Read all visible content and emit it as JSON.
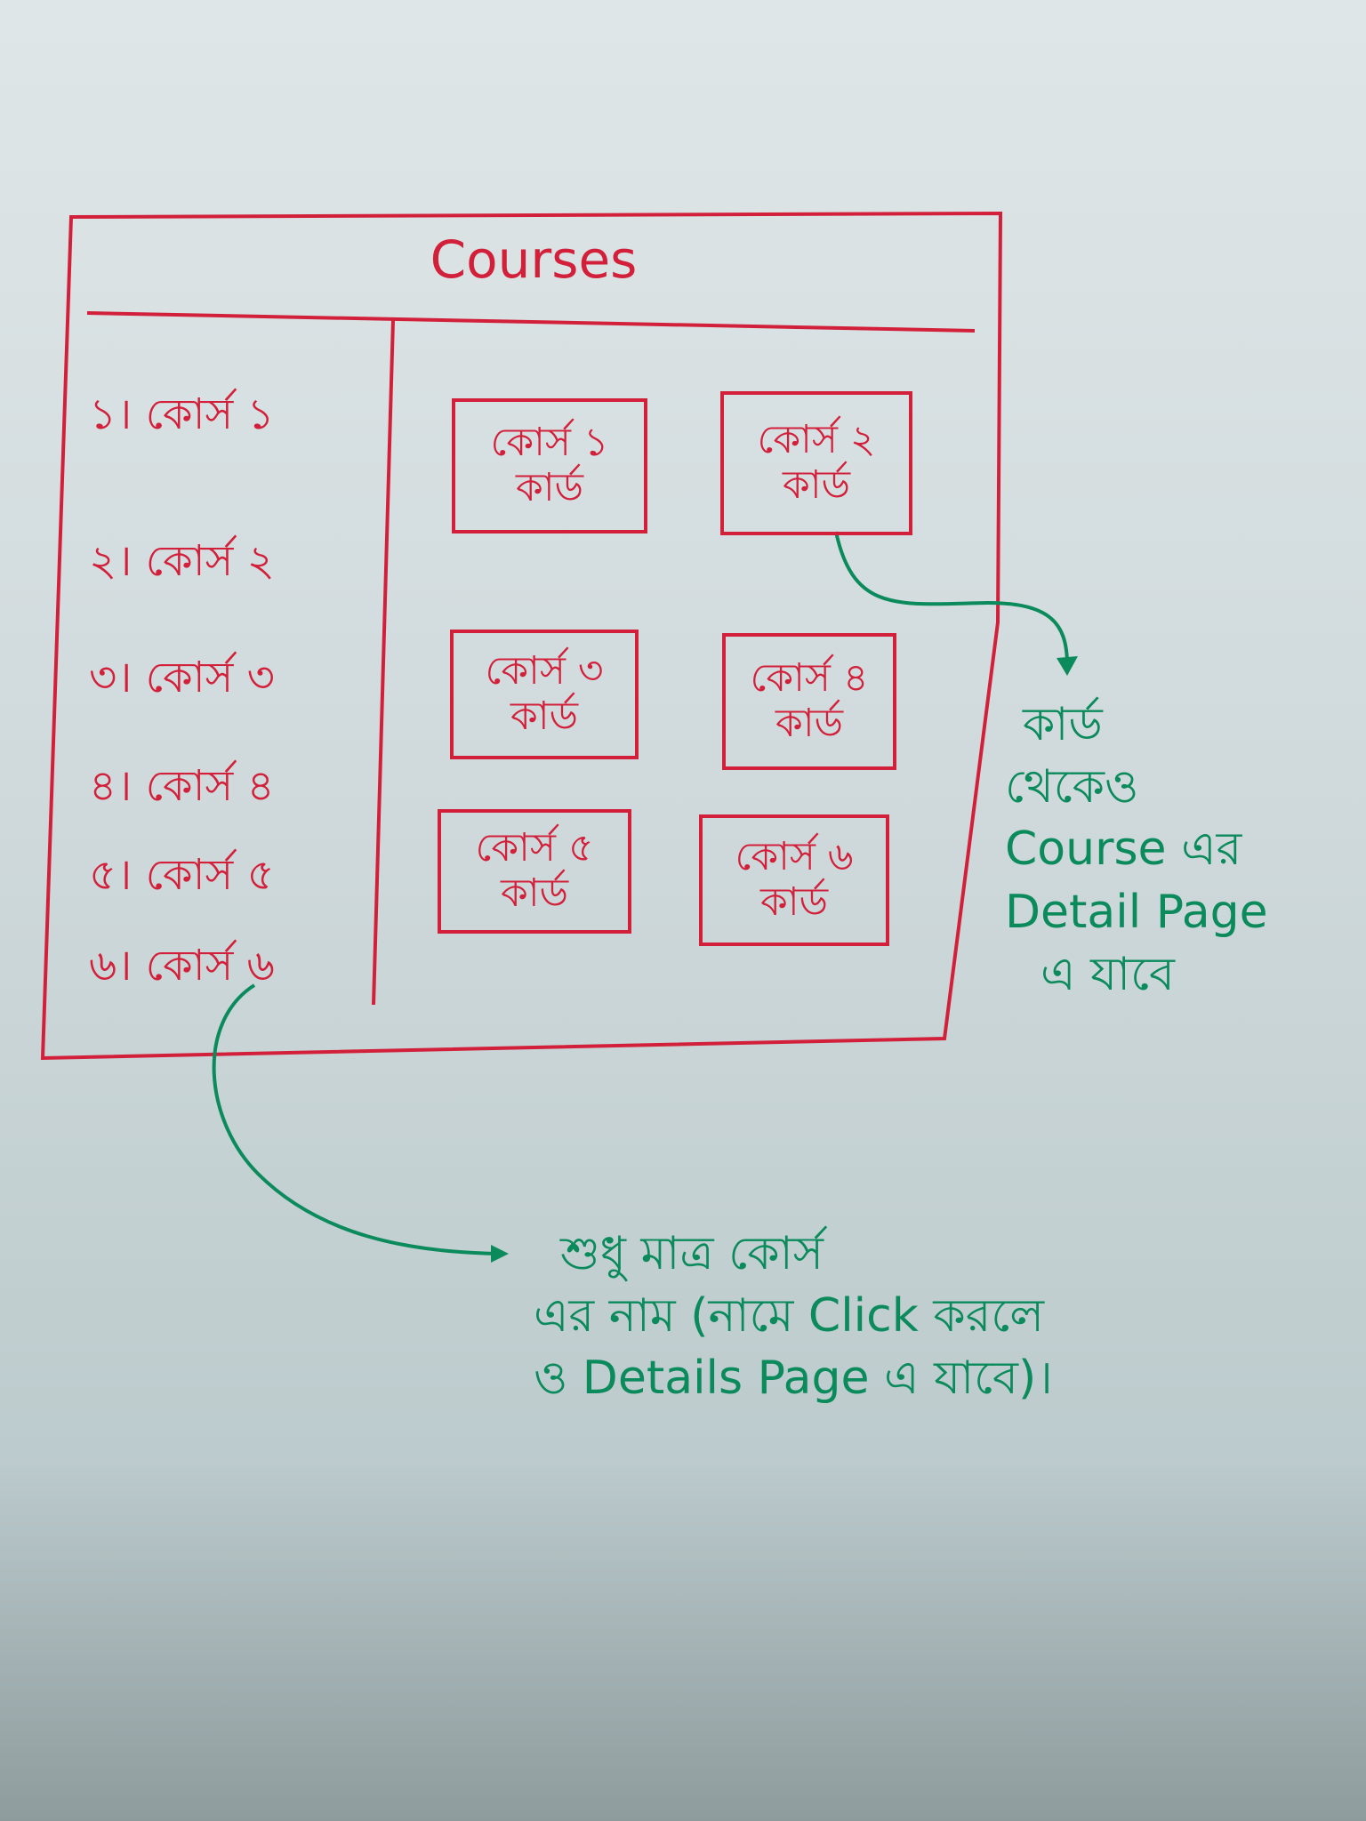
{
  "header": {
    "title": "Courses"
  },
  "sidebar": {
    "items": [
      {
        "label": "১। কোর্স ১"
      },
      {
        "label": "২। কোর্স ২"
      },
      {
        "label": "৩। কোর্স ৩"
      },
      {
        "label": "৪। কোর্স ৪"
      },
      {
        "label": "৫। কোর্স ৫"
      },
      {
        "label": "৬। কোর্স ৬"
      }
    ]
  },
  "cards": [
    {
      "line1": "কোর্স ১",
      "line2": "কার্ড"
    },
    {
      "line1": "কোর্স ২",
      "line2": "কার্ড"
    },
    {
      "line1": "কোর্স ৩",
      "line2": "কার্ড"
    },
    {
      "line1": "কোর্স ৪",
      "line2": "কার্ড"
    },
    {
      "line1": "কোর্স ৫",
      "line2": "কার্ড"
    },
    {
      "line1": "কোর্স ৬",
      "line2": "কার্ড"
    }
  ],
  "annotations": {
    "card_note": [
      "কার্ড",
      "থেকেও",
      "Course এর",
      "Detail Page",
      "এ যাবে"
    ],
    "sidebar_note": [
      "শুধু মাত্র কোর্স",
      "এর নাম (নামে Click করলে",
      "ও Details Page এ যাবে)।"
    ]
  },
  "colors": {
    "ink_red": "#d3203a",
    "ink_green": "#0b8a5c"
  }
}
